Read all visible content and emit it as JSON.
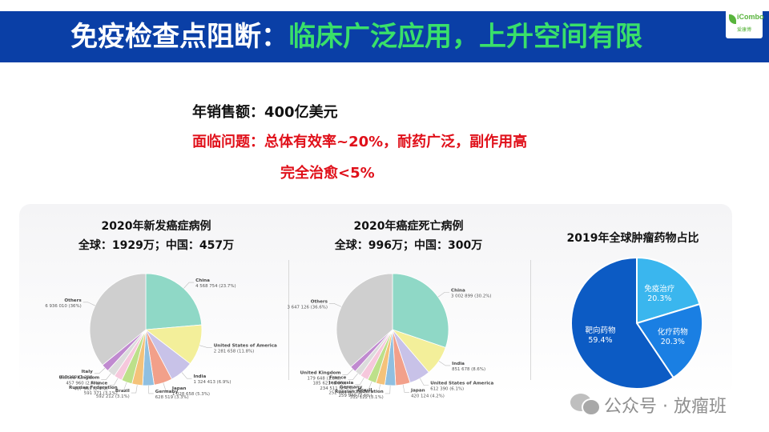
{
  "header": {
    "title_white": "免疫检查点阻断：",
    "title_green": "临床广泛应用，上升空间有限",
    "logo_text": "iCombo",
    "logo_sub": "爱康博"
  },
  "stats": {
    "line1": "年销售额：400亿美元",
    "line2": "面临问题：总体有效率~20%，耐药广泛，副作用高",
    "line3": "完全治愈<5%"
  },
  "colors": {
    "title_bar": "#0a3fa6",
    "title_green": "#39e06a",
    "alert_red": "#e0101a",
    "pie_blue_dark": "#0c5bc4",
    "pie_blue_light": "#3ab6ee",
    "pie_blue_mid": "#1a7fe3"
  },
  "watermark": {
    "text": "公众号 · 放瘤班",
    "icon": "wechat-icon"
  },
  "chart_data": [
    {
      "type": "pie",
      "title": "2020年新发癌症病例",
      "subtitle": "全球：1929万；中国：457万",
      "slices": [
        {
          "label": "China",
          "value": "4 568 754 (23.7%)",
          "pct": 23.7,
          "color": "#8fd8c6"
        },
        {
          "label": "United States of America",
          "value": "2 281 658 (11.8%)",
          "pct": 11.8,
          "color": "#f3ef9a"
        },
        {
          "label": "India",
          "value": "1 324 413 (6.9%)",
          "pct": 6.9,
          "color": "#c8c2e8"
        },
        {
          "label": "Japan",
          "value": "1 028 658 (5.3%)",
          "pct": 5.3,
          "color": "#f2a08a"
        },
        {
          "label": "Germany",
          "value": "628 519 (3.3%)",
          "pct": 3.3,
          "color": "#8fbfe0"
        },
        {
          "label": "Brazil",
          "value": "592 212 (3.1%)",
          "pct": 3.1,
          "color": "#f4c27a"
        },
        {
          "label": "Russian Federation",
          "value": "591 371 (3.1%)",
          "pct": 3.1,
          "color": "#bde08a"
        },
        {
          "label": "France",
          "value": "467 965 (2.4%)",
          "pct": 2.4,
          "color": "#f6c8dc"
        },
        {
          "label": "United Kingdom",
          "value": "457 960 (2.4%)",
          "pct": 2.4,
          "color": "#dcdcdc"
        },
        {
          "label": "Italy",
          "value": "415 269 (2.2%)",
          "pct": 2.2,
          "color": "#c08ad0"
        },
        {
          "label": "Others",
          "value": "6 936 010 (36%)",
          "pct": 36.0,
          "color": "#cfcfcf"
        }
      ]
    },
    {
      "type": "pie",
      "title": "2020年癌症死亡病例",
      "subtitle": "全球：996万；中国：300万",
      "slices": [
        {
          "label": "China",
          "value": "3 002 899 (30.2%)",
          "pct": 30.2,
          "color": "#8fd8c6"
        },
        {
          "label": "India",
          "value": "851 678 (8.6%)",
          "pct": 8.6,
          "color": "#f3ef9a"
        },
        {
          "label": "United States of America",
          "value": "612 390 (6.1%)",
          "pct": 6.1,
          "color": "#c8c2e8"
        },
        {
          "label": "Japan",
          "value": "420 124 (4.2%)",
          "pct": 4.2,
          "color": "#f2a08a"
        },
        {
          "label": "Russian Federation",
          "value": "312 122 (3.1%)",
          "pct": 3.1,
          "color": "#8fbfe0"
        },
        {
          "label": "Brazil",
          "value": "259 949 (2.6%)",
          "pct": 2.6,
          "color": "#f4c27a"
        },
        {
          "label": "Germany",
          "value": "252 065 (2.5%)",
          "pct": 2.5,
          "color": "#bde08a"
        },
        {
          "label": "Indonesia",
          "value": "234 511 (2.4%)",
          "pct": 2.4,
          "color": "#f6c8dc"
        },
        {
          "label": "France",
          "value": "185 621 (1.9%)",
          "pct": 1.9,
          "color": "#dcdcdc"
        },
        {
          "label": "United Kingdom",
          "value": "179 648 (1.8%)",
          "pct": 1.8,
          "color": "#c08ad0"
        },
        {
          "label": "Others",
          "value": "3 647 126 (36.6%)",
          "pct": 36.6,
          "color": "#cfcfcf"
        }
      ]
    },
    {
      "type": "pie",
      "title": "2019年全球肿瘤药物占比",
      "slices": [
        {
          "label": "免疫治疗",
          "value": "20.3%",
          "pct": 20.3,
          "color": "#3ab6ee"
        },
        {
          "label": "化疗药物",
          "value": "20.3%",
          "pct": 20.3,
          "color": "#1a7fe3"
        },
        {
          "label": "靶向药物",
          "value": "59.4%",
          "pct": 59.4,
          "color": "#0c5bc4"
        }
      ]
    }
  ]
}
